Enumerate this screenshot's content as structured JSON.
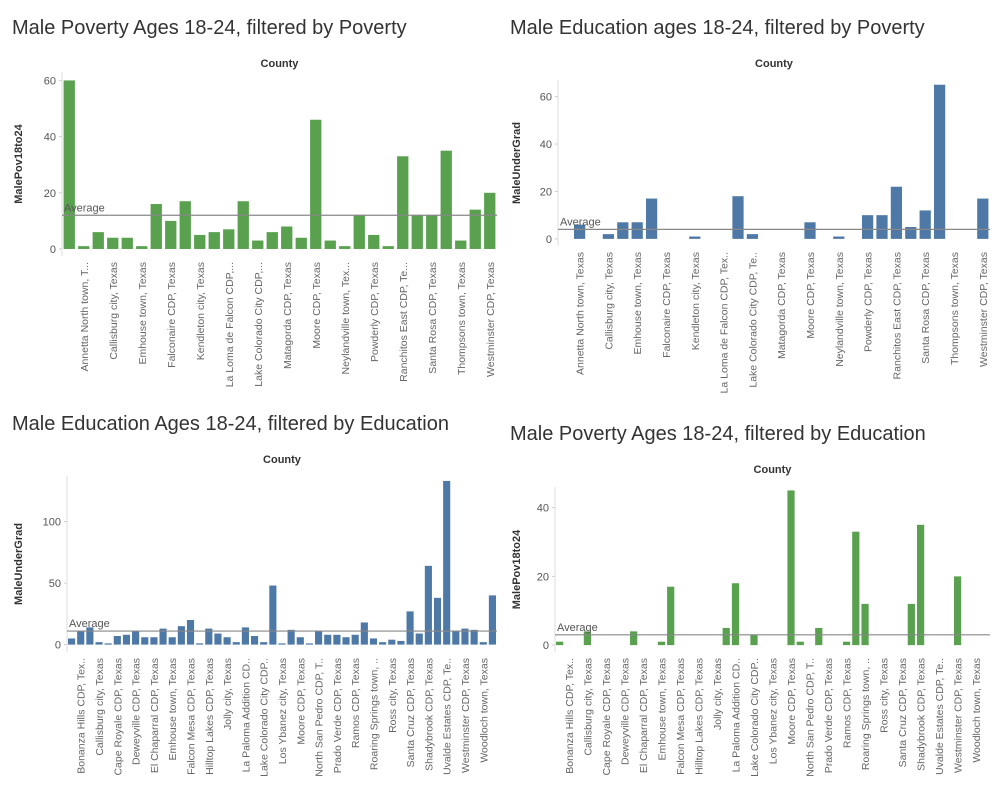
{
  "chart_data": [
    {
      "type": "bar",
      "title": "Male Poverty Ages 18-24, filtered by Poverty",
      "x_label": "County",
      "y_label": "MalePov18to24",
      "color": "#59a14f",
      "categories": [
        null,
        "Annetta North town, T...",
        null,
        "Callisburg city, Texas",
        null,
        "Emhouse town, Texas",
        null,
        "Falconaire CDP, Texas",
        null,
        "Kendleton city, Texas",
        null,
        "La Loma de Falcon CDP,...",
        null,
        "Lake Colorado City CDP,...",
        null,
        "Matagorda CDP, Texas",
        null,
        "Moore CDP, Texas",
        null,
        "Neylandville town, Tex...",
        null,
        "Powderly CDP, Texas",
        null,
        "Ranchitos East CDP, Te...",
        null,
        "Santa Rosa CDP, Texas",
        null,
        "Thompsons town, Texas",
        null,
        "Westminster CDP, Texas"
      ],
      "values": [
        60,
        1,
        6,
        4,
        4,
        1,
        16,
        10,
        17,
        5,
        6,
        7,
        17,
        3,
        6,
        8,
        4,
        46,
        3,
        1,
        12,
        5,
        1,
        33,
        12,
        12,
        35,
        3,
        14,
        20
      ],
      "ylim": [
        -2.5,
        63
      ],
      "yticks": [
        0,
        20,
        40,
        60
      ],
      "average": 12,
      "average_label": "Average"
    },
    {
      "type": "bar",
      "title": "Male Education ages 18-24, filtered by Poverty",
      "x_label": "County",
      "y_label": "MaleUnderGrad",
      "color": "#4e79a7",
      "categories": [
        null,
        "Annetta North town, Texas",
        null,
        "Callisburg city, Texas",
        null,
        "Emhouse town, Texas",
        null,
        "Falconaire CDP, Texas",
        null,
        "Kendleton city, Texas",
        null,
        "La Loma de Falcon CDP, Tex..",
        null,
        "Lake Colorado City CDP, Te..",
        null,
        "Matagorda CDP, Texas",
        null,
        "Moore CDP, Texas",
        null,
        "Neylandville town, Texas",
        null,
        "Powderly CDP, Texas",
        null,
        "Ranchitos East CDP, Texas",
        null,
        "Santa Rosa CDP, Texas",
        null,
        "Thompsons town, Texas",
        null,
        "Westminster CDP, Texas"
      ],
      "values": [
        null,
        6,
        null,
        2,
        7,
        7,
        17,
        null,
        null,
        1,
        null,
        null,
        18,
        2,
        null,
        null,
        null,
        7,
        null,
        1,
        null,
        10,
        10,
        22,
        5,
        12,
        65,
        null,
        null,
        17
      ],
      "ylim": [
        -3,
        67
      ],
      "yticks": [
        0,
        20,
        40,
        60
      ],
      "average": 4,
      "average_label": "Average"
    },
    {
      "type": "bar",
      "title": "Male Education Ages 18-24, filtered by Education",
      "x_label": "County",
      "y_label": "MaleUnderGrad",
      "color": "#4e79a7",
      "categories": [
        null,
        "Bonanza Hills CDP, Tex..",
        null,
        "Callisburg city, Texas",
        null,
        "Cape Royale CDP, Texas",
        null,
        "Deweyville CDP, Texas",
        null,
        "El Chaparral CDP, Texas",
        null,
        "Emhouse town, Texas",
        null,
        "Falcon Mesa CDP, Texas",
        null,
        "Hilltop Lakes CDP, Texas",
        null,
        "Jolly city, Texas",
        null,
        "La Paloma Addition CD..",
        null,
        "Lake Colorado City CDP..",
        null,
        "Los Ybanez city, Texas",
        null,
        "Moore CDP, Texas",
        null,
        "North San Pedro CDP, T..",
        null,
        "Prado Verde CDP, Texas",
        null,
        "Ramos CDP, Texas",
        null,
        "Roaring Springs town, ..",
        null,
        "Ross city, Texas",
        null,
        "Santa Cruz CDP, Texas",
        null,
        "Shadybrook CDP, Texas",
        null,
        "Uvalde Estates CDP, Te..",
        null,
        "Westminster CDP, Texas",
        null,
        "Woodloch town, Texas",
        null
      ],
      "values": [
        5,
        11,
        14,
        2,
        1,
        7,
        8,
        11,
        6,
        6,
        13,
        6,
        15,
        20,
        1,
        13,
        9,
        6,
        2,
        14,
        7,
        2,
        48,
        1,
        12,
        6,
        1,
        11,
        8,
        8,
        6,
        8,
        18,
        5,
        2,
        4,
        3,
        27,
        9,
        64,
        38,
        133,
        11,
        13,
        12,
        2,
        40
      ],
      "ylim": [
        -6,
        137
      ],
      "yticks": [
        0,
        50,
        100
      ],
      "average": 11,
      "average_label": "Average"
    },
    {
      "type": "bar",
      "title": "Male Poverty Ages 18-24, filtered by Education",
      "x_label": "County",
      "y_label": "MalePov18to24",
      "color": "#59a14f",
      "categories": [
        null,
        "Bonanza Hills CDP, Tex..",
        null,
        "Callisburg city, Texas",
        null,
        "Cape Royale CDP, Texas",
        null,
        "Deweyville CDP, Texas",
        null,
        "El Chaparral CDP, Texas",
        null,
        "Emhouse town, Texas",
        null,
        "Falcon Mesa CDP, Texas",
        null,
        "Hilltop Lakes CDP, Texas",
        null,
        "Jolly city, Texas",
        null,
        "La Paloma Addition CD..",
        null,
        "Lake Colorado City CDP..",
        null,
        "Los Ybanez city, Texas",
        null,
        "Moore CDP, Texas",
        null,
        "North San Pedro CDP, T..",
        null,
        "Prado Verde CDP, Texas",
        null,
        "Ramos CDP, Texas",
        null,
        "Roaring Springs town, ..",
        null,
        "Ross city, Texas",
        null,
        "Santa Cruz CDP, Texas",
        null,
        "Shadybrook CDP, Texas",
        null,
        "Uvalde Estates CDP, Te..",
        null,
        "Westminster CDP, Texas",
        null,
        "Woodloch town, Texas",
        null
      ],
      "values": [
        1,
        null,
        null,
        4,
        null,
        null,
        null,
        null,
        4,
        null,
        null,
        1,
        17,
        null,
        null,
        null,
        null,
        null,
        5,
        18,
        null,
        3,
        null,
        null,
        null,
        45,
        1,
        null,
        5,
        null,
        null,
        1,
        33,
        12,
        null,
        null,
        null,
        null,
        12,
        35,
        null,
        null,
        null,
        20,
        null,
        null,
        null
      ],
      "ylim": [
        -2,
        46
      ],
      "yticks": [
        0,
        20,
        40
      ],
      "average": 3,
      "average_label": "Average"
    }
  ]
}
